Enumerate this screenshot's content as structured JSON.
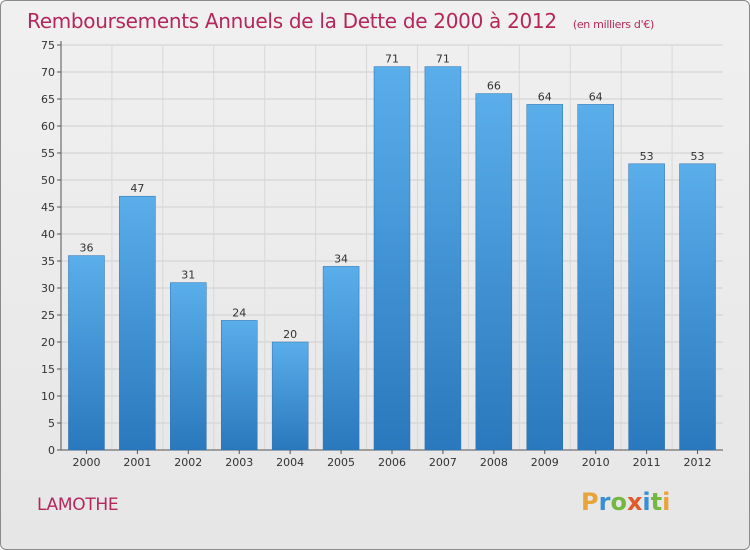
{
  "chart_data": {
    "type": "bar",
    "title": "Remboursements Annuels de la Dette de 2000 à 2012",
    "unit": "(en milliers d'€)",
    "categories": [
      "2000",
      "2001",
      "2002",
      "2003",
      "2004",
      "2005",
      "2006",
      "2007",
      "2008",
      "2009",
      "2010",
      "2011",
      "2012"
    ],
    "values": [
      36,
      47,
      31,
      24,
      20,
      34,
      71,
      71,
      66,
      64,
      64,
      53,
      53
    ],
    "ylim": [
      0,
      75
    ],
    "yticks": [
      0,
      5,
      10,
      15,
      20,
      25,
      30,
      35,
      40,
      45,
      50,
      55,
      60,
      65,
      70,
      75
    ],
    "grid": true,
    "bar_color": "#3a8fd3",
    "title_color": "#b5275a"
  },
  "footer": {
    "town": "LAMOTHE",
    "logo": {
      "letters": [
        "P",
        "r",
        "o",
        "x",
        "i",
        "t",
        "i"
      ],
      "colors": [
        "#e8a33a",
        "#3a8fd3",
        "#74b843",
        "#e05a2a",
        "#3a8fd3",
        "#74b843",
        "#e8a33a"
      ]
    }
  }
}
